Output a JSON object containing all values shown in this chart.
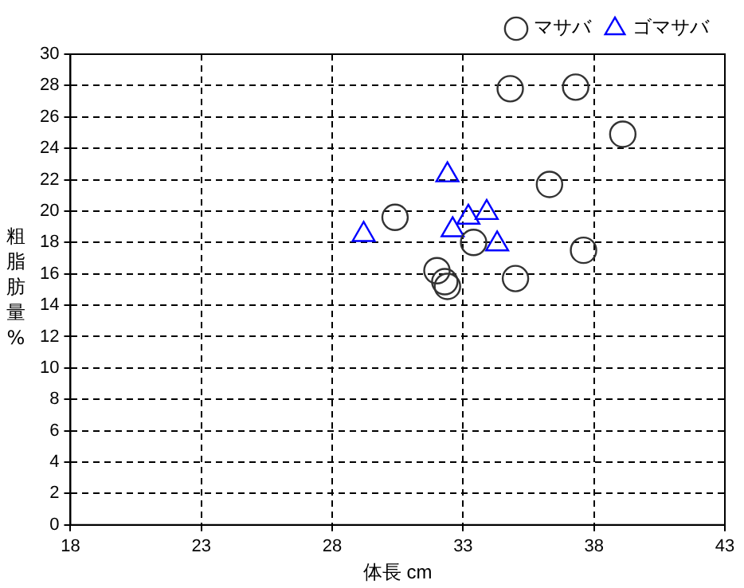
{
  "chart_data": {
    "type": "scatter",
    "xlabel": "体長 cm",
    "ylabel": "粗脂肪量%",
    "xlim": [
      18,
      43
    ],
    "xticks": [
      18,
      23,
      28,
      33,
      38,
      43
    ],
    "ylim": [
      0,
      30
    ],
    "yticks": [
      0,
      2,
      4,
      6,
      8,
      10,
      12,
      14,
      16,
      18,
      20,
      22,
      24,
      26,
      28,
      30
    ],
    "grid": true,
    "legend": "top right",
    "series": [
      {
        "name": "マサバ",
        "color": "#333333",
        "marker": "circle",
        "x": [
          34.8,
          37.3,
          39.1,
          36.3,
          30.4,
          33.4,
          37.6,
          32.0,
          32.3,
          32.4,
          35.0
        ],
        "values": [
          27.8,
          27.9,
          24.9,
          21.7,
          19.6,
          18.0,
          17.5,
          16.2,
          15.5,
          15.2,
          15.7
        ]
      },
      {
        "name": "ゴマサバ",
        "color": "#0000ff",
        "marker": "triangle",
        "x": [
          32.4,
          29.2,
          32.6,
          33.2,
          33.9,
          34.3
        ],
        "values": [
          22.3,
          18.5,
          18.8,
          19.6,
          19.9,
          17.9
        ]
      }
    ]
  }
}
